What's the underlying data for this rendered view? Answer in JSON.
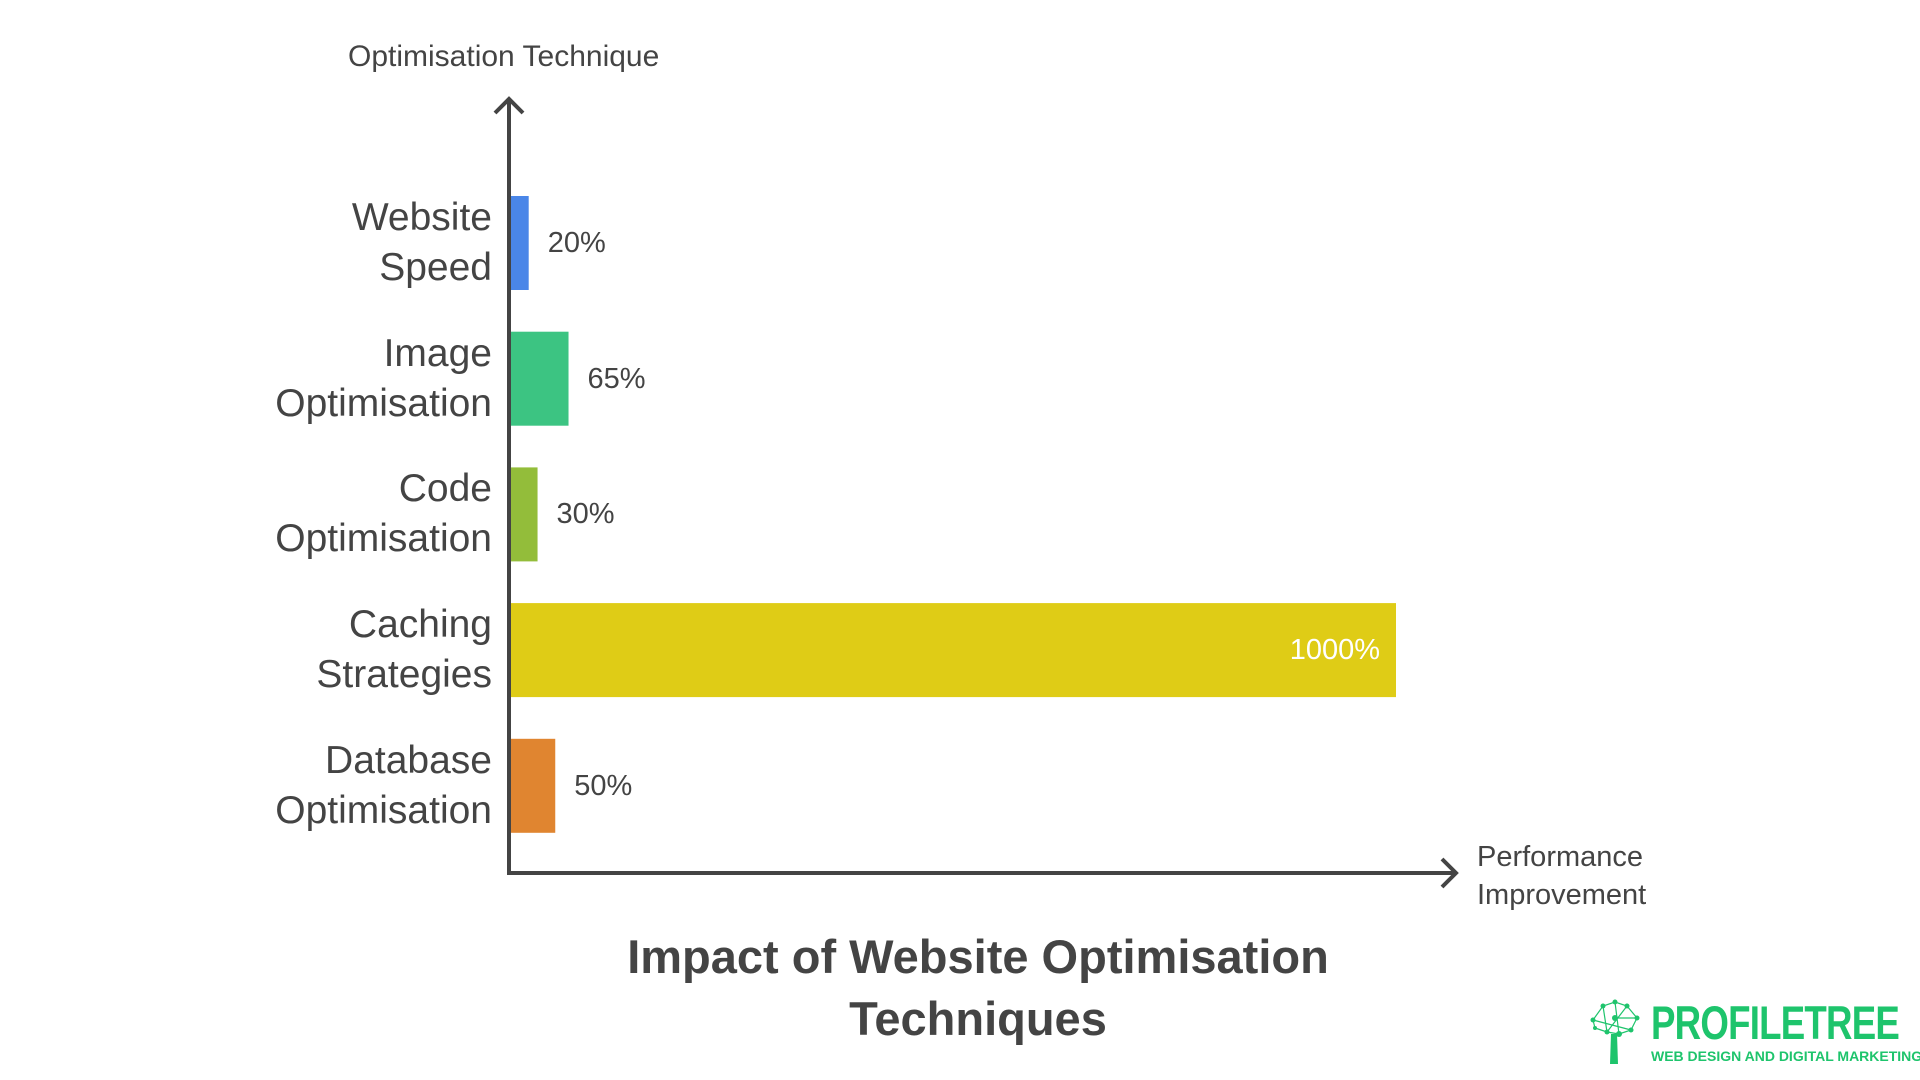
{
  "chart_data": {
    "type": "bar",
    "orientation": "horizontal",
    "title": "Impact of Website Optimisation Techniques",
    "ylabel": "Optimisation Technique",
    "xlabel": "Performance Improvement",
    "categories": [
      "Website Speed",
      "Image Optimisation",
      "Code Optimisation",
      "Caching Strategies",
      "Database Optimisation"
    ],
    "category_lines": [
      [
        "Website",
        "Speed"
      ],
      [
        "Image",
        "Optimisation"
      ],
      [
        "Code",
        "Optimisation"
      ],
      [
        "Caching",
        "Strategies"
      ],
      [
        "Database",
        "Optimisation"
      ]
    ],
    "values": [
      20,
      65,
      30,
      1000,
      50
    ],
    "value_labels": [
      "20%",
      "65%",
      "30%",
      "1000%",
      "50%"
    ],
    "unit": "%",
    "colors": [
      "#4a86e8",
      "#3cc482",
      "#93bd3a",
      "#dfcc16",
      "#e08530"
    ],
    "xlim": [
      0,
      1000
    ],
    "grid": false,
    "legend": "none"
  },
  "axis_color": "#444444",
  "logo": {
    "name": "PROFILETREE",
    "tagline": "WEB DESIGN AND DIGITAL MARKETING",
    "color": "#1ec46c"
  }
}
